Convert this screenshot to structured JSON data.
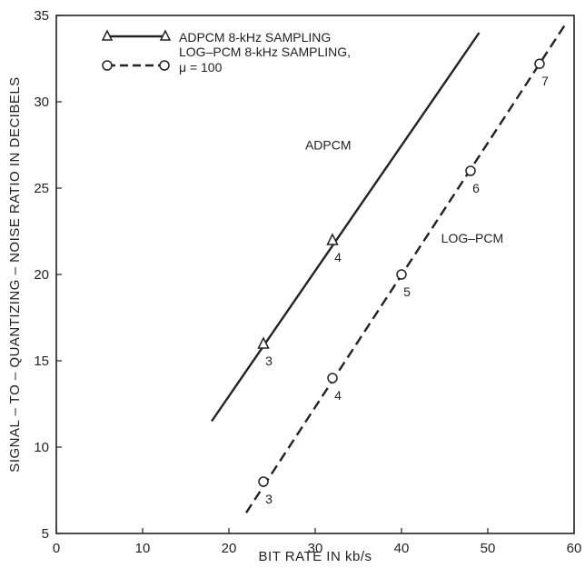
{
  "chart_data": {
    "type": "line",
    "xlabel": "BIT RATE IN kb/s",
    "ylabel": "SIGNAL – TO – QUANTIZING – NOISE RATIO IN DECIBELS",
    "xlim": [
      0,
      60
    ],
    "ylim": [
      5,
      35
    ],
    "x_ticks": [
      0,
      10,
      20,
      30,
      40,
      50,
      60
    ],
    "y_ticks": [
      5,
      10,
      15,
      20,
      25,
      30,
      35
    ],
    "grid": false,
    "legend_position": "top-left",
    "legend": {
      "adpcm": "ADPCM 8-kHz SAMPLING",
      "logpcm_line1": "LOG–PCM 8-kHz SAMPLING,",
      "logpcm_line2": "μ = 100"
    },
    "series": [
      {
        "name": "ADPCM",
        "line_style": "solid",
        "marker": "triangle",
        "line_x": [
          18,
          49
        ],
        "line_y": [
          11.5,
          34
        ],
        "points": [
          {
            "x": 24,
            "y": 16,
            "label": "3"
          },
          {
            "x": 32,
            "y": 22,
            "label": "4"
          }
        ]
      },
      {
        "name": "LOG–PCM",
        "line_style": "dashed",
        "marker": "circle",
        "line_x": [
          22,
          59
        ],
        "line_y": [
          6.2,
          34.5
        ],
        "points": [
          {
            "x": 24,
            "y": 8,
            "label": "3"
          },
          {
            "x": 32,
            "y": 14,
            "label": "4"
          },
          {
            "x": 40,
            "y": 20,
            "label": "5"
          },
          {
            "x": 48,
            "y": 26,
            "label": "6"
          },
          {
            "x": 56,
            "y": 32.2,
            "label": "7"
          }
        ]
      }
    ]
  }
}
